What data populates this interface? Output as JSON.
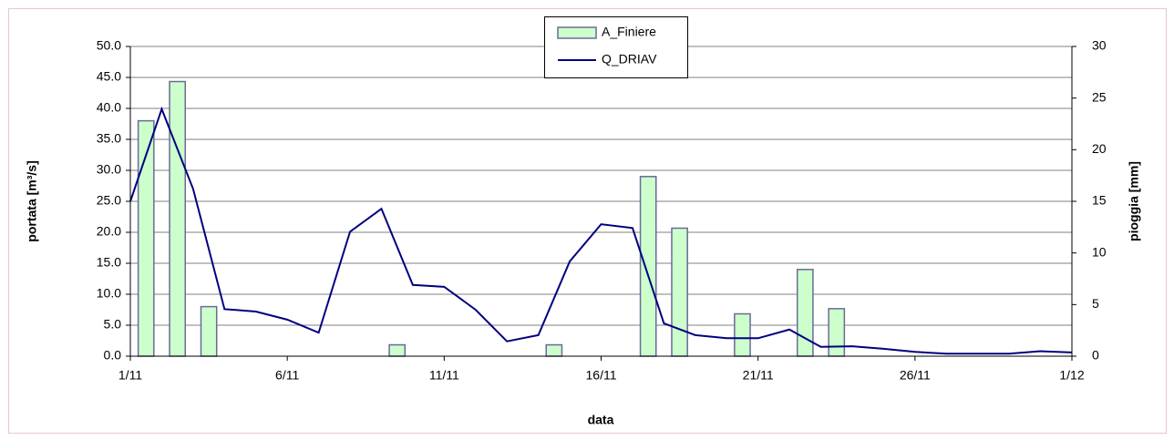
{
  "chart_data": {
    "type": "bar_line",
    "x_label": "data",
    "y_label": "portata [m³/s]",
    "y2_label": "pioggia [mm]",
    "xlim": [
      0,
      30
    ],
    "xticks": [
      {
        "value": 0,
        "label": "1/11"
      },
      {
        "value": 5,
        "label": "6/11"
      },
      {
        "value": 10,
        "label": "11/11"
      },
      {
        "value": 15,
        "label": "16/11"
      },
      {
        "value": 20,
        "label": "21/11"
      },
      {
        "value": 25,
        "label": "26/11"
      },
      {
        "value": 30,
        "label": "1/12"
      }
    ],
    "ylim": [
      0,
      50
    ],
    "yticks": [
      {
        "value": 0,
        "label": "0.0"
      },
      {
        "value": 5,
        "label": "5.0"
      },
      {
        "value": 10,
        "label": "10.0"
      },
      {
        "value": 15,
        "label": "15.0"
      },
      {
        "value": 20,
        "label": "20.0"
      },
      {
        "value": 25,
        "label": "25.0"
      },
      {
        "value": 30,
        "label": "30.0"
      },
      {
        "value": 35,
        "label": "35.0"
      },
      {
        "value": 40,
        "label": "40.0"
      },
      {
        "value": 45,
        "label": "45.0"
      },
      {
        "value": 50,
        "label": "50.0"
      }
    ],
    "y2lim": [
      0,
      30
    ],
    "y2ticks": [
      0,
      5,
      10,
      15,
      20,
      25,
      30
    ],
    "grid": true,
    "legend": "top",
    "series": [
      {
        "name": "A_Finiere",
        "type": "bar",
        "axis": "y2",
        "color": "#ccffcc",
        "edge": "#6a6a9a",
        "x": [
          0.5,
          1.5,
          2.5,
          8.5,
          13.5,
          16.5,
          17.5,
          19.5,
          21.5,
          22.5
        ],
        "values": [
          22.8,
          26.6,
          4.8,
          1.1,
          1.1,
          17.4,
          12.4,
          4.1,
          8.4,
          4.6
        ]
      },
      {
        "name": "Q_DRIAV",
        "type": "line",
        "axis": "y",
        "color": "#000080",
        "x": [
          0,
          1,
          2,
          3,
          4,
          5,
          6,
          7,
          8,
          9,
          10,
          11,
          12,
          13,
          14,
          15,
          16,
          17,
          18,
          19,
          20,
          21,
          22,
          23,
          24,
          25,
          26,
          27,
          28,
          29,
          30
        ],
        "values": [
          25.0,
          39.9,
          27.0,
          7.6,
          7.2,
          5.9,
          3.8,
          20.1,
          23.8,
          11.5,
          11.2,
          7.5,
          2.4,
          3.4,
          15.3,
          21.3,
          20.7,
          5.3,
          3.4,
          2.9,
          2.9,
          4.3,
          1.5,
          1.6,
          1.2,
          0.7,
          0.4,
          0.4,
          0.4,
          0.8,
          0.6
        ]
      }
    ]
  }
}
